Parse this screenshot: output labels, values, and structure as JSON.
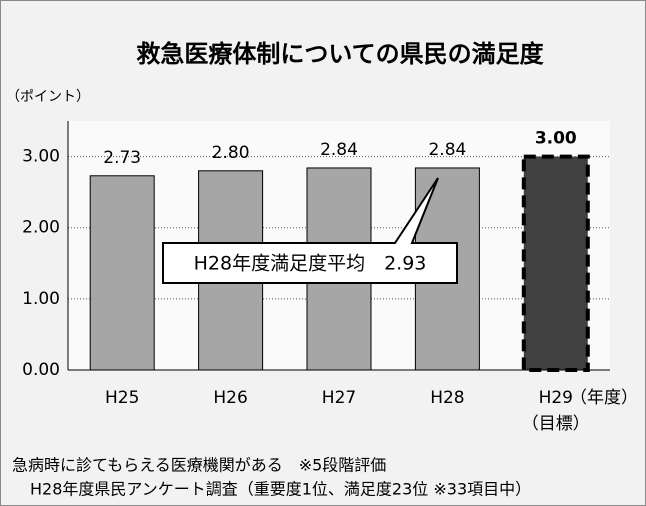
{
  "chart_data": {
    "type": "bar",
    "title": "救急医療体制についての県民の満足度",
    "y_axis_label": "（ポイント）",
    "x_axis_label": "（年度）",
    "categories": [
      "H25",
      "H26",
      "H27",
      "H28",
      "H29"
    ],
    "category_note": "（目標）",
    "values": [
      2.73,
      2.8,
      2.84,
      2.84,
      3.0
    ],
    "value_labels": [
      "2.73",
      "2.80",
      "2.84",
      "2.84",
      "3.00"
    ],
    "colors": [
      "#a6a6a6",
      "#a6a6a6",
      "#a6a6a6",
      "#a6a6a6",
      "#404040"
    ],
    "dashed": [
      false,
      false,
      false,
      false,
      true
    ],
    "ylim": [
      0,
      3.5
    ],
    "yticks": [
      {
        "value": 0,
        "label": "0.00"
      },
      {
        "value": 1,
        "label": "1.00"
      },
      {
        "value": 2,
        "label": "2.00"
      },
      {
        "value": 3,
        "label": "3.00"
      }
    ],
    "grid": true,
    "annotation": "H28年度満足度平均　2.93",
    "notes": [
      "急病時に診てもらえる医療機関がある　※5段階評価",
      "H28年度県民アンケート調査（重要度1位、満足度23位 ※33項目中）"
    ]
  }
}
